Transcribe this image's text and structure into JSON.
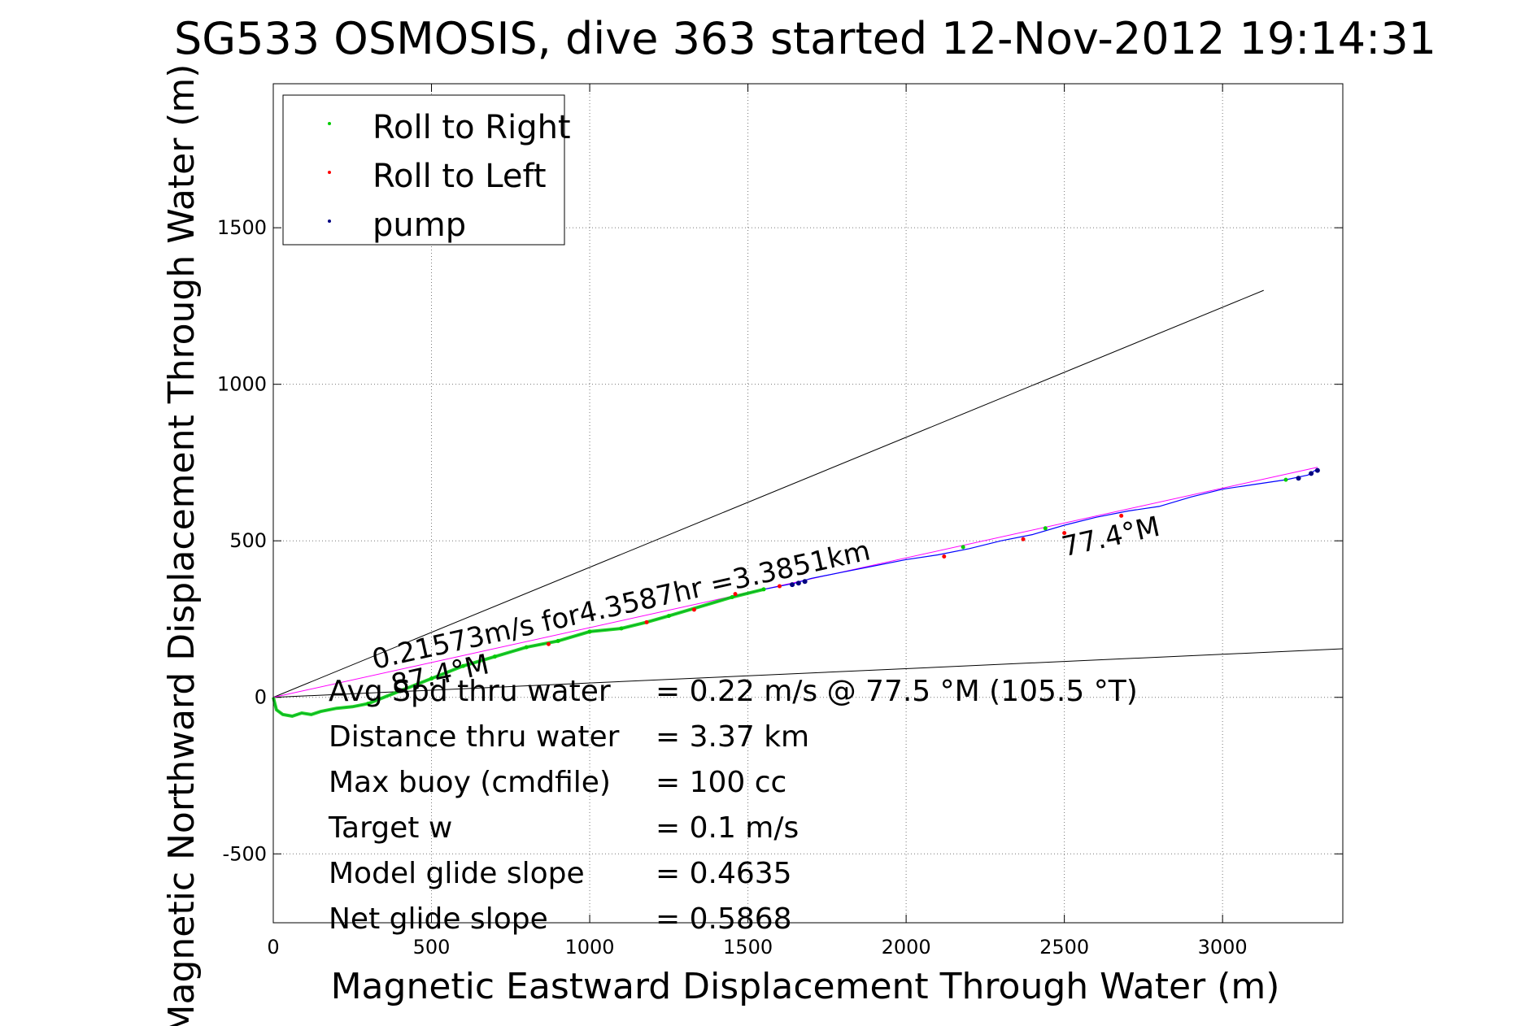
{
  "chart_data": {
    "type": "line",
    "title": "SG533 OSMOSIS, dive 363 started 12-Nov-2012 19:14:31",
    "xlabel": "Magnetic Eastward Displacement Through Water (m)",
    "ylabel": "Magnetic Northward Displacement Through Water (m)",
    "xlim": [
      0,
      3380
    ],
    "ylim": [
      -720,
      1960
    ],
    "xticks": [
      0,
      500,
      1000,
      1500,
      2000,
      2500,
      3000
    ],
    "yticks": [
      -500,
      0,
      500,
      1000,
      1500
    ],
    "grid": true,
    "legend_position": "top-left",
    "legend": [
      {
        "label": "Roll to Right",
        "color": "#00cc00"
      },
      {
        "label": "Roll to Left",
        "color": "#ff0000"
      },
      {
        "label": "pump",
        "color": "#000080"
      }
    ],
    "series": [
      {
        "name": "track",
        "color": "#0000ff",
        "x": [
          0,
          10,
          30,
          60,
          90,
          120,
          150,
          200,
          250,
          300,
          400,
          500,
          600,
          700,
          800,
          900,
          1000,
          1100,
          1180,
          1250,
          1350,
          1450,
          1550,
          1650,
          1700,
          1800,
          1900,
          2000,
          2100,
          2200,
          2300,
          2400,
          2500,
          2600,
          2700,
          2800,
          2900,
          3000,
          3100,
          3200,
          3270,
          3300
        ],
        "y": [
          0,
          -40,
          -55,
          -60,
          -50,
          -55,
          -45,
          -35,
          -30,
          -20,
          20,
          60,
          100,
          130,
          160,
          180,
          210,
          220,
          240,
          260,
          290,
          320,
          345,
          365,
          380,
          400,
          420,
          440,
          455,
          475,
          500,
          520,
          550,
          575,
          595,
          610,
          640,
          665,
          680,
          695,
          710,
          730
        ]
      }
    ],
    "roll_right_x": [
      300,
      400,
      500,
      600,
      700,
      800,
      900,
      1000,
      1100,
      1250,
      1450,
      1550,
      2180,
      2440,
      3200
    ],
    "roll_right_y": [
      -20,
      20,
      60,
      100,
      130,
      160,
      180,
      210,
      220,
      260,
      320,
      345,
      480,
      540,
      695
    ],
    "roll_left_x": [
      870,
      1180,
      1330,
      1460,
      1600,
      2120,
      2370,
      2500,
      2680
    ],
    "roll_left_y": [
      170,
      240,
      280,
      330,
      355,
      450,
      505,
      525,
      580
    ],
    "pump_x": [
      1640,
      1660,
      1680,
      3240,
      3280,
      3300
    ],
    "pump_y": [
      360,
      365,
      370,
      700,
      715,
      725
    ],
    "reference_lines": [
      {
        "color": "#000000",
        "x": [
          0,
          3130
        ],
        "y": [
          0,
          1300
        ]
      },
      {
        "color": "#000000",
        "x": [
          0,
          3380
        ],
        "y": [
          0,
          155
        ]
      },
      {
        "color": "#ff00ff",
        "x": [
          0,
          3300
        ],
        "y": [
          0,
          735
        ]
      }
    ],
    "annotations": [
      {
        "text": "0.21573m/s for4.3587hr =3.3851km",
        "x": 320,
        "y": 90
      },
      {
        "text": "77.4°M",
        "x": 2500,
        "y": 450
      },
      {
        "text": "87.4°M",
        "x": 380,
        "y": 10
      }
    ],
    "stats": [
      {
        "label": "Avg Spd thru water",
        "value": "=  0.22 m/s @  77.5 °M (105.5 °T)"
      },
      {
        "label": "Distance thru water",
        "value": "=  3.37 km"
      },
      {
        "label": "Max buoy (cmdfile)",
        "value": "= 100 cc"
      },
      {
        "label": "Target w",
        "value": "= 0.1 m/s"
      },
      {
        "label": "Model glide slope",
        "value": "= 0.4635"
      },
      {
        "label": "Net glide slope",
        "value": "= 0.5868"
      }
    ]
  }
}
